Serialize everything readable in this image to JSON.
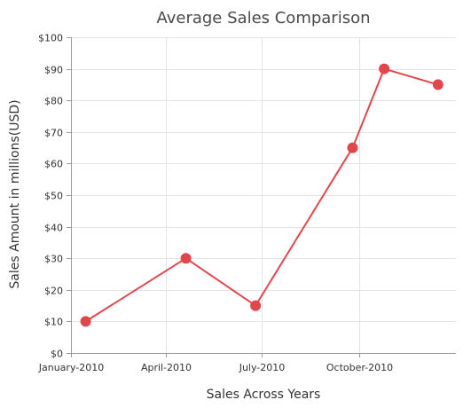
{
  "chart_data": {
    "type": "line",
    "title": "Average Sales Comparison",
    "xlabel": "Sales Across Years",
    "ylabel": "Sales Amount in millions(USD)",
    "x_tick_labels": [
      "January-2010",
      "April-2010",
      "July-2010",
      "October-2010"
    ],
    "x_ticks": [
      "2010-01-01",
      "2010-04-01",
      "2010-07-01",
      "2010-10-01"
    ],
    "xlim": [
      "2010-01-01",
      "2011-01-01"
    ],
    "y_tick_labels": [
      "$0",
      "$10",
      "$20",
      "$30",
      "$40",
      "$50",
      "$60",
      "$70",
      "$80",
      "$90",
      "$100"
    ],
    "ylim": [
      0,
      100
    ],
    "y_interval": 10,
    "grid": true,
    "marker": "circle",
    "series": [
      {
        "color": "#e0474c",
        "points": [
          {
            "x": "2010-01-15",
            "y": 10
          },
          {
            "x": "2010-04-20",
            "y": 30
          },
          {
            "x": "2010-06-25",
            "y": 15
          },
          {
            "x": "2010-09-25",
            "y": 65
          },
          {
            "x": "2010-10-25",
            "y": 90
          },
          {
            "x": "2010-12-15",
            "y": 85
          }
        ]
      }
    ]
  }
}
